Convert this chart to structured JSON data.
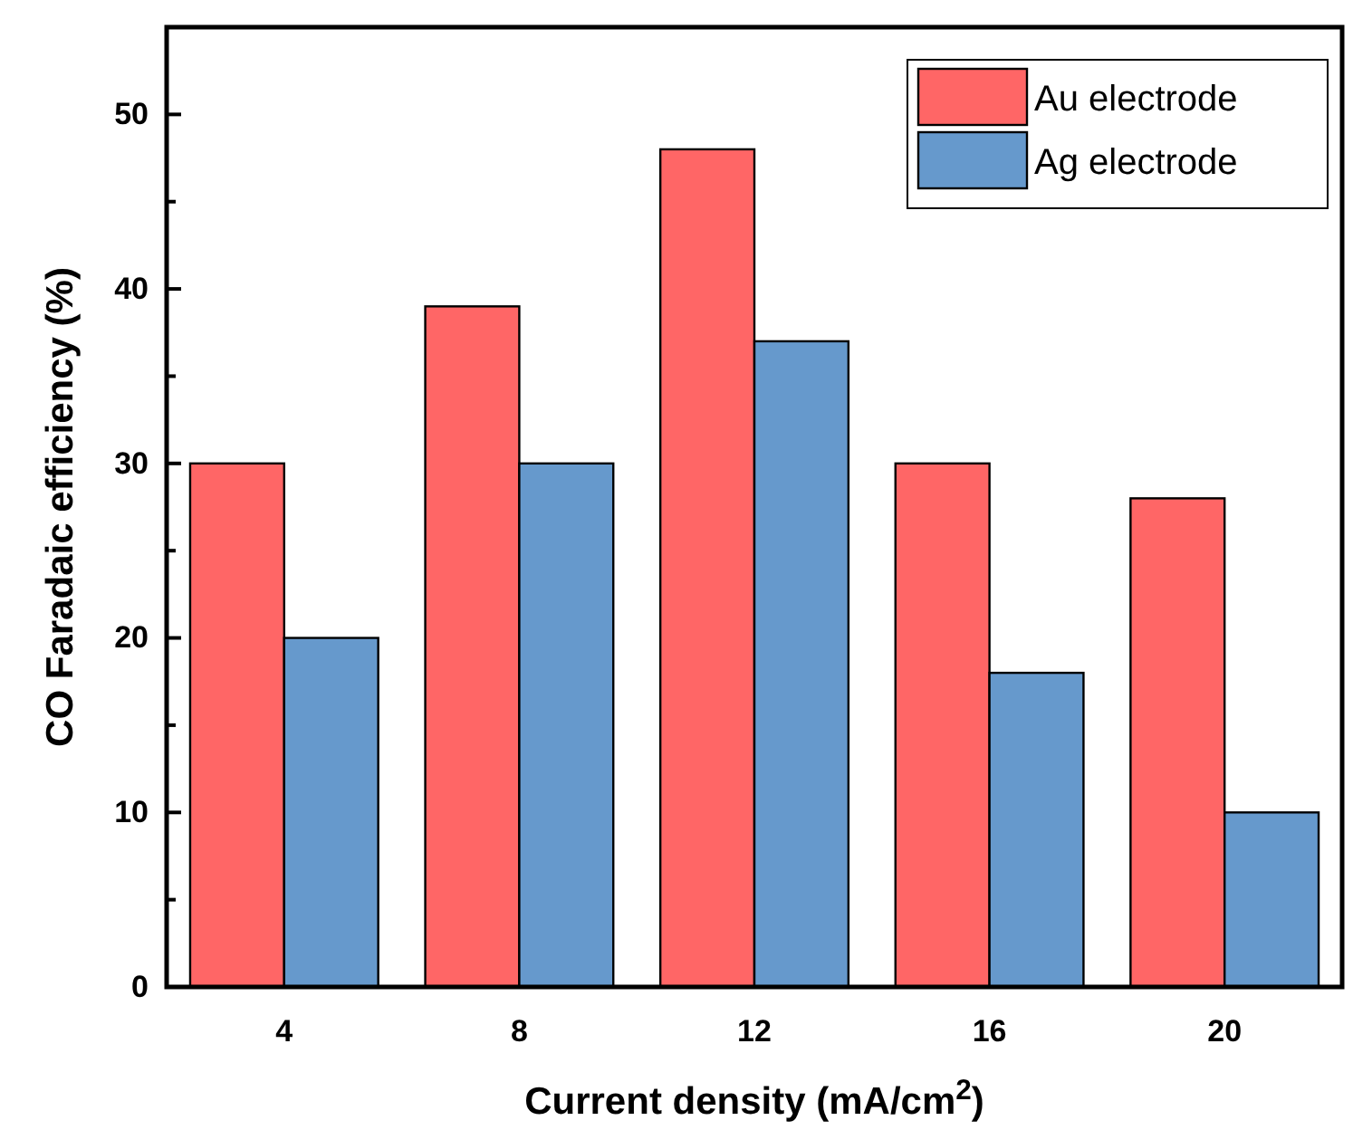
{
  "chart_data": {
    "type": "bar",
    "xlabel": "Current density (mA/cm$^{2}$)",
    "ylabel": "CO Faradaic efficiency (%)",
    "categories": [
      "4",
      "8",
      "12",
      "16",
      "20"
    ],
    "series": [
      {
        "name": "Au electrode",
        "color": "#ff6666",
        "values": [
          30,
          39,
          48,
          30,
          28
        ]
      },
      {
        "name": "Ag electrode",
        "color": "#6699cc",
        "values": [
          20,
          30,
          37,
          18,
          10
        ]
      }
    ],
    "ylim": [
      0,
      55
    ],
    "yticks": [
      0,
      {
        "value": 5,
        "label": null
      },
      10,
      {
        "value": 15,
        "label": null
      },
      20,
      {
        "value": 25,
        "label": null
      },
      30,
      {
        "value": 35,
        "label": null
      },
      40,
      {
        "value": 45,
        "label": null
      },
      50
    ],
    "legend": "top right",
    "grid": false
  }
}
